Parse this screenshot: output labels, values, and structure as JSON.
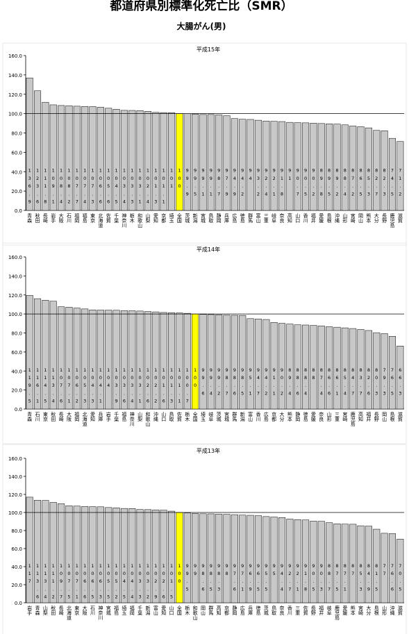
{
  "title": "都道府県別標準化死亡比（SMR）",
  "subtitle": "大腸がん(男)",
  "chart_data": [
    {
      "type": "bar",
      "title": "平成15年",
      "categories": [
        "青森",
        "秋田",
        "長崎",
        "岩手",
        "大阪",
        "石川",
        "福岡",
        "福島",
        "東京",
        "北海道",
        "佐賀",
        "千葉",
        "神奈川",
        "栃木",
        "和歌山",
        "山梨",
        "愛知",
        "京都",
        "埼玉",
        "全国",
        "茨城",
        "新潟",
        "宮城",
        "鳥取",
        "静岡",
        "兵庫",
        "広島",
        "徳島",
        "群馬",
        "富山",
        "三重",
        "岐阜",
        "奈良",
        "高知",
        "山口",
        "香川",
        "福井",
        "愛媛",
        "島根",
        "沖縄",
        "山形",
        "宮崎",
        "岡山",
        "熊本",
        "大分",
        "長野",
        "鹿児島",
        "滋賀"
      ],
      "values": [
        136.9,
        123.6,
        111.8,
        109.1,
        108.4,
        108.2,
        107.7,
        107.4,
        107.3,
        106.6,
        105.6,
        104.5,
        103.4,
        103.3,
        103.1,
        102.4,
        101.3,
        101.1,
        101.0,
        100.0,
        99.9,
        99.5,
        99.1,
        99.1,
        98.7,
        97.9,
        94.9,
        94.2,
        94.0,
        93.2,
        92.4,
        92.1,
        91.8,
        91.0,
        90.7,
        90.5,
        90.2,
        89.8,
        89.5,
        89.2,
        88.4,
        87.2,
        86.5,
        85.3,
        82.7,
        82.3,
        74.5,
        71.2
      ],
      "color": "#c8c8c8",
      "highlight_index": 19,
      "highlight_color": "#ffff00",
      "reference_line": 100,
      "ylim": [
        0,
        160
      ],
      "yticks": [
        {
          "value": 0,
          "label": "0.0"
        },
        {
          "value": 20,
          "label": "20.0"
        },
        {
          "value": 40,
          "label": "40.0"
        },
        {
          "value": 60,
          "label": "60.0"
        },
        {
          "value": 80,
          "label": "80.0"
        },
        {
          "value": 100,
          "label": "100.0"
        },
        {
          "value": 120,
          "label": "120.0"
        },
        {
          "value": 140,
          "label": "140.0"
        },
        {
          "value": 160,
          "label": "160.0"
        }
      ]
    },
    {
      "type": "bar",
      "title": "平成14年",
      "categories": [
        "青森",
        "石川",
        "東京",
        "秋田",
        "長崎",
        "大阪",
        "福岡",
        "北海道",
        "愛知",
        "兵庫",
        "岩手",
        "千葉",
        "福島",
        "神奈川",
        "山梨",
        "和歌山",
        "沖縄",
        "山口",
        "鳥取",
        "佐賀",
        "栃木",
        "全国",
        "埼玉",
        "岐阜",
        "茨城",
        "宮城",
        "群馬",
        "新潟",
        "富山",
        "香川",
        "広島",
        "京都",
        "大分",
        "熊本",
        "静岡",
        "徳島",
        "愛媛",
        "奈良",
        "山形",
        "三重",
        "宮崎",
        "鹿児島",
        "高知",
        "福井",
        "長野",
        "岡山",
        "島根",
        "滋賀"
      ],
      "values": [
        119.5,
        116.1,
        114.5,
        113.4,
        107.6,
        107.1,
        106.2,
        105.3,
        104.3,
        104.1,
        104.0,
        103.9,
        103.6,
        103.4,
        103.1,
        102.6,
        102.2,
        101.6,
        101.3,
        101.1,
        100.7,
        100.0,
        99.6,
        99.4,
        99.2,
        98.7,
        98.6,
        98.5,
        95.1,
        94.7,
        94.2,
        91.1,
        90.2,
        89.4,
        88.6,
        88.4,
        88.0,
        87.4,
        86.6,
        86.1,
        85.4,
        84.7,
        83.7,
        82.6,
        80.3,
        79.3,
        76.5,
        66.3
      ],
      "color": "#c8c8c8",
      "highlight_index": 21,
      "highlight_color": "#ffff00",
      "reference_line": 100,
      "ylim": [
        0,
        160
      ],
      "yticks": [
        {
          "value": 0,
          "label": "0.0"
        },
        {
          "value": 20,
          "label": "20.0"
        },
        {
          "value": 40,
          "label": "40.0"
        },
        {
          "value": 60,
          "label": "60.0"
        },
        {
          "value": 80,
          "label": "80.0"
        },
        {
          "value": 100,
          "label": "100.0"
        },
        {
          "value": 120,
          "label": "120.0"
        },
        {
          "value": 140,
          "label": "140.0"
        },
        {
          "value": 160,
          "label": "160.0"
        }
      ]
    },
    {
      "type": "bar",
      "title": "平成13年",
      "categories": [
        "岩手",
        "青森",
        "山梨",
        "秋田",
        "長崎",
        "北海道",
        "東京",
        "大阪",
        "石川",
        "神奈川",
        "宮城",
        "福島",
        "埼玉",
        "福岡",
        "千葉",
        "新潟",
        "富山",
        "愛知",
        "山口",
        "全国",
        "栃木",
        "和歌山",
        "岡山",
        "群馬",
        "高知",
        "京都",
        "静岡",
        "広島",
        "兵庫",
        "徳島",
        "茨城",
        "鳥取",
        "奈良",
        "香川",
        "三重",
        "佐賀",
        "長野",
        "福井",
        "岐阜",
        "鹿児島",
        "愛媛",
        "熊本",
        "宮崎",
        "大分",
        "島根",
        "山形",
        "沖縄",
        "滋賀"
      ],
      "values": [
        117.0,
        113.6,
        113.4,
        111.2,
        109.7,
        107.5,
        107.1,
        106.6,
        106.5,
        106.3,
        105.5,
        105.2,
        104.5,
        104.4,
        103.3,
        103.2,
        102.9,
        102.6,
        101.5,
        100.0,
        99.5,
        99.0,
        98.6,
        98.5,
        98.3,
        98.0,
        97.6,
        97.1,
        96.9,
        96.5,
        95.5,
        95.0,
        94.4,
        92.7,
        92.1,
        91.8,
        90.5,
        90.3,
        88.7,
        87.5,
        87.1,
        87.0,
        85.3,
        84.9,
        81.5,
        77.0,
        76.6,
        70.5
      ],
      "color": "#c8c8c8",
      "highlight_index": 19,
      "highlight_color": "#ffff00",
      "reference_line": 100,
      "ylim": [
        0,
        160
      ],
      "yticks": [
        {
          "value": 0,
          "label": "0.0"
        },
        {
          "value": 20,
          "label": "20.0"
        },
        {
          "value": 40,
          "label": "40.0"
        },
        {
          "value": 60,
          "label": "60.0"
        },
        {
          "value": 80,
          "label": "80.0"
        },
        {
          "value": 100,
          "label": "100.0"
        },
        {
          "value": 120,
          "label": "120.0"
        },
        {
          "value": 140,
          "label": "140.0"
        },
        {
          "value": 160,
          "label": "160.0"
        }
      ]
    }
  ]
}
